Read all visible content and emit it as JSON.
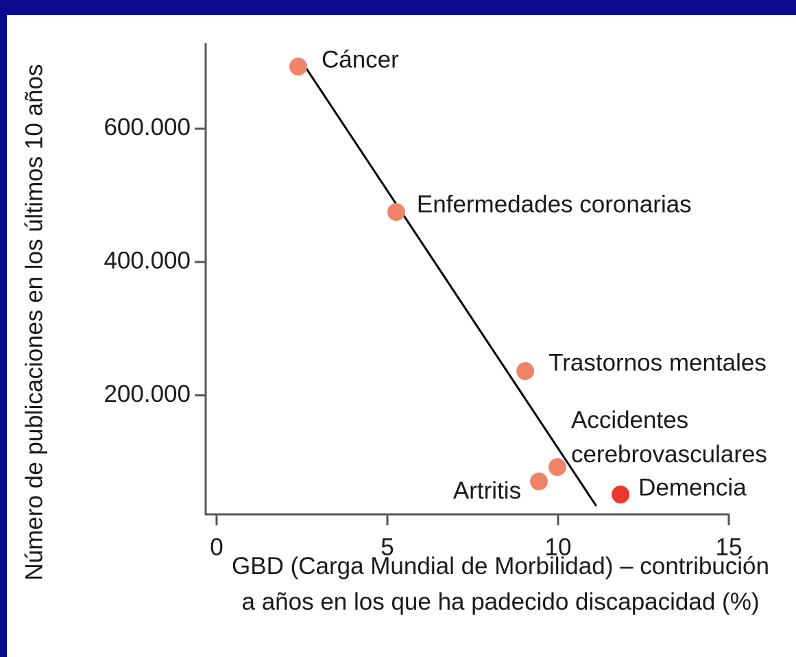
{
  "chart_data": {
    "type": "scatter",
    "x_label": "GBD (Carga Mundial de Morbilidad) – contribución a años en los que ha padecido discapacidad (%)",
    "y_label": "Número de publicaciones en los últimos 10 años",
    "categories": [
      "Cáncer",
      "Enfermedades coronarias",
      "Trastornos mentales",
      "Accidentes cerebrovasculares",
      "Artritis",
      "Demencia"
    ],
    "x": [
      2.39,
      5.26,
      9.04,
      9.98,
      9.44,
      11.83
    ],
    "values": [
      693000,
      475000,
      236500,
      92500,
      71000,
      51400
    ],
    "colors": [
      "#f08468",
      "#f08468",
      "#f08468",
      "#f08468",
      "#f08468",
      "#e8392c"
    ],
    "trendline": {
      "x": [
        2.63,
        11.12
      ],
      "values": [
        690000,
        34000
      ],
      "color": "#000000"
    },
    "xlim": [
      -0.32,
      15
    ],
    "xticks": [
      0,
      5,
      10,
      15
    ],
    "ylim": [
      21600,
      726000
    ],
    "yticks": [
      {
        "value": 200000,
        "label": "200.000"
      },
      {
        "value": 400000,
        "label": "400.000"
      },
      {
        "value": 600000,
        "label": "600.000"
      }
    ]
  }
}
